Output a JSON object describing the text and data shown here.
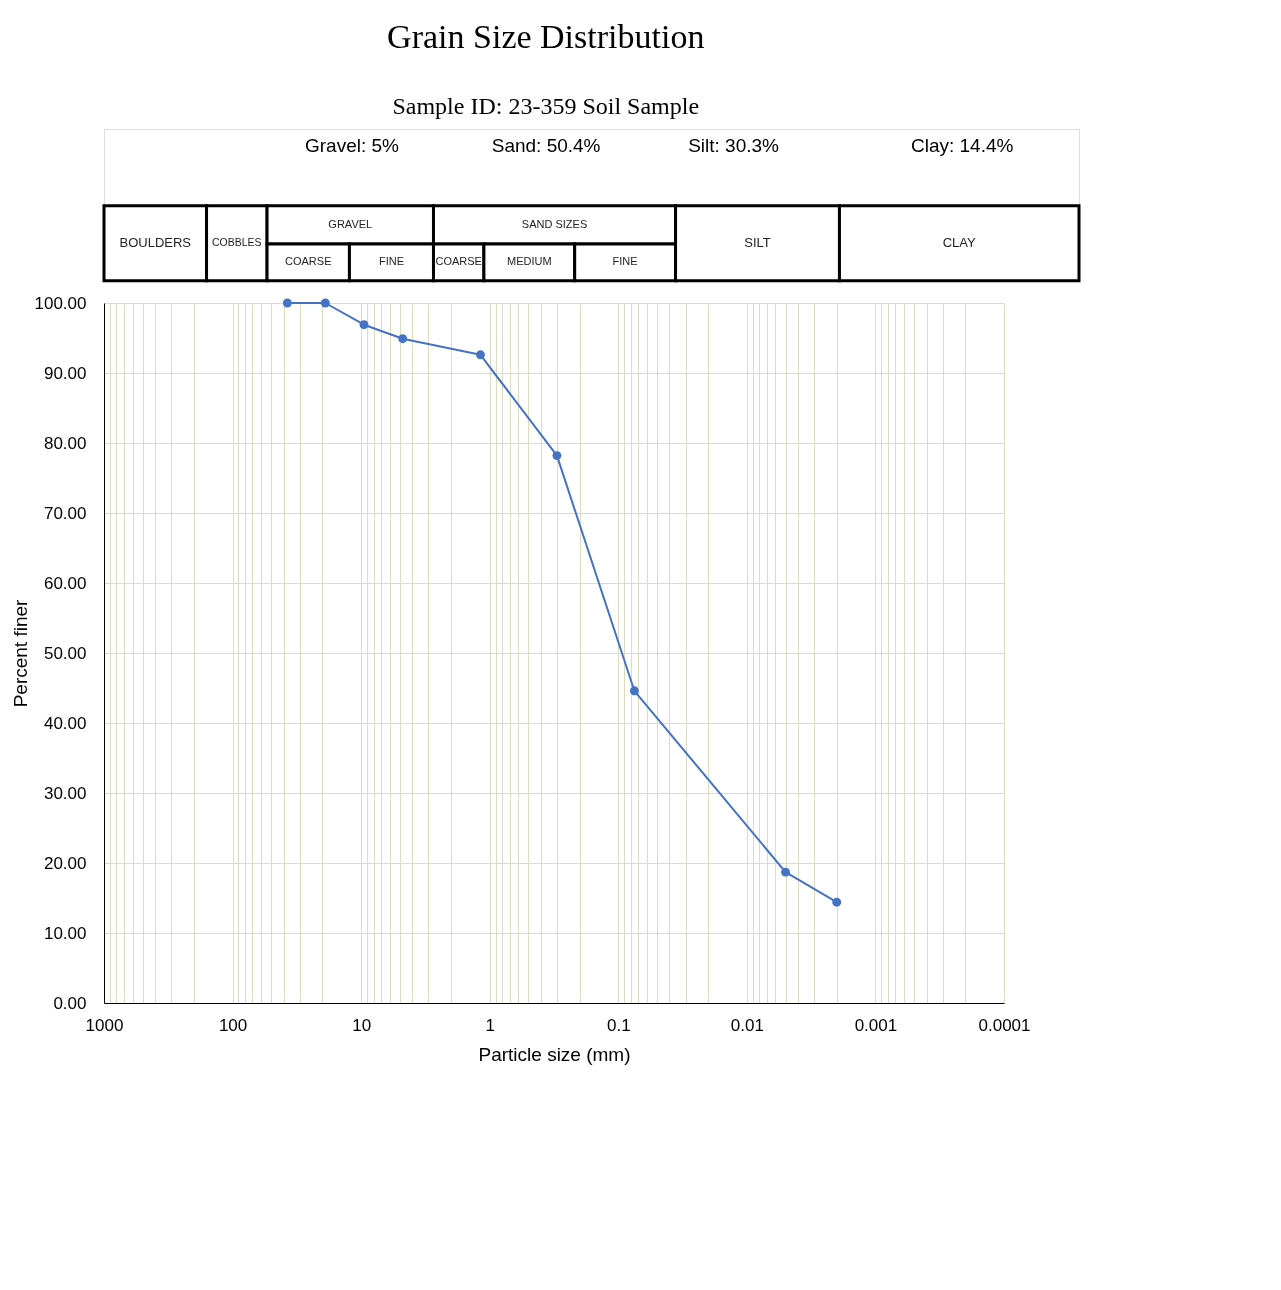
{
  "chart_data": {
    "type": "line",
    "title": "Grain Size Distribution",
    "subtitle": "Sample ID: 23-359 Soil Sample",
    "xlabel": "Particle size (mm)",
    "ylabel": "Percent finer",
    "annotations": [
      "Gravel: 5%",
      "Sand:  50.4%",
      "Silt: 30.3%",
      "Clay:  14.4%",
      "BOULDERS",
      "COBBLES",
      "GRAVEL",
      "COARSE",
      "FINE",
      "SAND SIZES",
      "COARSE",
      "MEDIUM",
      "FINE",
      "SILT",
      "CLAY"
    ],
    "x": [
      37.5,
      19,
      9.5,
      4.75,
      1.18,
      0.3,
      0.075,
      0.005,
      0.002
    ],
    "series": [
      {
        "color": "#4472c4",
        "values": [
          100,
          100,
          96.9,
          94.9,
          92.6,
          78.2,
          44.6,
          18.7,
          14.4
        ]
      }
    ],
    "log": "x",
    "xlim": [
      1000,
      0.0001
    ],
    "xticks": [
      1000,
      100,
      10,
      1,
      0.1,
      0.01,
      0.001,
      0.0001
    ],
    "ylim": [
      0,
      100
    ],
    "yticks": [
      {
        "value": 0,
        "label": "0.00"
      },
      {
        "value": 10,
        "label": "10.00"
      },
      {
        "value": 20,
        "label": "20.00"
      },
      {
        "value": 30,
        "label": "30.00"
      },
      {
        "value": 40,
        "label": "40.00"
      },
      {
        "value": 50,
        "label": "50.00"
      },
      {
        "value": 60,
        "label": "60.00"
      },
      {
        "value": 70,
        "label": "70.00"
      },
      {
        "value": 80,
        "label": "80.00"
      },
      {
        "value": 90,
        "label": "90.00"
      },
      {
        "value": 100,
        "label": "100.00"
      }
    ],
    "grid": true,
    "marker": "circle",
    "line_style": "solid"
  }
}
